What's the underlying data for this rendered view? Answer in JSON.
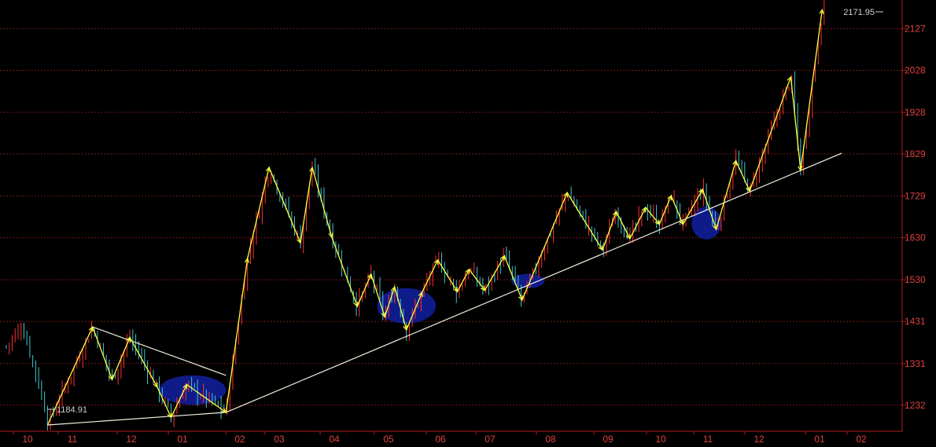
{
  "chart_data": {
    "type": "candlestick",
    "colors": {
      "background": "#000000",
      "axis": "#b02020",
      "grid": "#7a1515",
      "tick_text": "#e04040",
      "up_candle": "#ff3030",
      "down_candle": "#40c8d0",
      "wave_lines": "#ffff40",
      "trend_lines": "#f0f0e0",
      "highlight_ellipses": "#101c90"
    },
    "grid": true,
    "ylim": [
      1170,
      2195
    ],
    "y_ticks": [
      1232,
      1331,
      1431,
      1530,
      1630,
      1729,
      1829,
      1928,
      2028,
      2127
    ],
    "x_ticks": [
      "10",
      "11",
      "12",
      "01",
      "02",
      "03",
      "04",
      "05",
      "06",
      "07",
      "08",
      "09",
      "10",
      "11",
      "12",
      "01",
      "02"
    ],
    "x_range": [
      0,
      23
    ],
    "annotations": [
      {
        "text": "2171.95",
        "x": 22.42,
        "y": 2172
      },
      {
        "text": "1184.91",
        "x": 1.05,
        "y": 1185
      }
    ],
    "swing_points": [
      {
        "x": 1.05,
        "y": 1185
      },
      {
        "x": 2.2,
        "y": 1418
      },
      {
        "x": 2.7,
        "y": 1293
      },
      {
        "x": 3.15,
        "y": 1393
      },
      {
        "x": 3.85,
        "y": 1275
      },
      {
        "x": 4.2,
        "y": 1203
      },
      {
        "x": 4.6,
        "y": 1281
      },
      {
        "x": 5.6,
        "y": 1215
      },
      {
        "x": 6.15,
        "y": 1581
      },
      {
        "x": 6.7,
        "y": 1797
      },
      {
        "x": 7.5,
        "y": 1618
      },
      {
        "x": 7.8,
        "y": 1797
      },
      {
        "x": 8.3,
        "y": 1631
      },
      {
        "x": 8.95,
        "y": 1467
      },
      {
        "x": 9.3,
        "y": 1543
      },
      {
        "x": 9.65,
        "y": 1442
      },
      {
        "x": 9.9,
        "y": 1513
      },
      {
        "x": 10.2,
        "y": 1411
      },
      {
        "x": 10.6,
        "y": 1500
      },
      {
        "x": 11.0,
        "y": 1577
      },
      {
        "x": 11.5,
        "y": 1502
      },
      {
        "x": 11.8,
        "y": 1555
      },
      {
        "x": 12.2,
        "y": 1505
      },
      {
        "x": 12.7,
        "y": 1587
      },
      {
        "x": 13.15,
        "y": 1482
      },
      {
        "x": 14.3,
        "y": 1737
      },
      {
        "x": 15.2,
        "y": 1601
      },
      {
        "x": 15.55,
        "y": 1692
      },
      {
        "x": 15.9,
        "y": 1628
      },
      {
        "x": 16.3,
        "y": 1702
      },
      {
        "x": 16.65,
        "y": 1662
      },
      {
        "x": 16.95,
        "y": 1730
      },
      {
        "x": 17.25,
        "y": 1662
      },
      {
        "x": 17.75,
        "y": 1745
      },
      {
        "x": 18.1,
        "y": 1650
      },
      {
        "x": 18.6,
        "y": 1813
      },
      {
        "x": 18.95,
        "y": 1741
      },
      {
        "x": 20.0,
        "y": 2012
      },
      {
        "x": 20.25,
        "y": 1790
      },
      {
        "x": 20.8,
        "y": 2172
      }
    ],
    "trend_lines": [
      {
        "from": {
          "x": 1.05,
          "y": 1185
        },
        "to": {
          "x": 5.6,
          "y": 1215
        }
      },
      {
        "from": {
          "x": 2.2,
          "y": 1418
        },
        "to": {
          "x": 5.6,
          "y": 1303
        }
      },
      {
        "from": {
          "x": 5.6,
          "y": 1215
        },
        "to": {
          "x": 21.3,
          "y": 1831
        }
      }
    ],
    "highlight_ellipses": [
      {
        "cx": 4.75,
        "cy": 1268,
        "rx": 0.85,
        "ry": 35
      },
      {
        "cx": 10.2,
        "cy": 1468,
        "rx": 0.75,
        "ry": 42
      },
      {
        "cx": 13.3,
        "cy": 1527,
        "rx": 0.42,
        "ry": 17
      },
      {
        "cx": 17.85,
        "cy": 1665,
        "rx": 0.38,
        "ry": 39
      }
    ]
  }
}
